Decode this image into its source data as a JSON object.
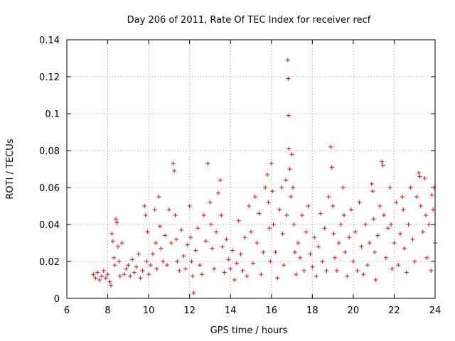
{
  "chart_data": {
    "type": "scatter",
    "title": "Day 206 of 2011, Rate Of TEC Index for receiver recf",
    "xlabel": "GPS time / hours",
    "ylabel": "ROTI / TECUs",
    "xlim": [
      6,
      24
    ],
    "ylim": [
      0,
      0.14
    ],
    "xticks": [
      6,
      8,
      10,
      12,
      14,
      16,
      18,
      20,
      22,
      24
    ],
    "xtick_labels": [
      "6",
      "8",
      "10",
      "12",
      "14",
      "16",
      "18",
      "20",
      "22",
      "24"
    ],
    "yticks": [
      0,
      0.02,
      0.04,
      0.06,
      0.08,
      0.1,
      0.12,
      0.14
    ],
    "ytick_labels": [
      "0",
      "0.02",
      "0.04",
      "0.06",
      "0.08",
      "0.1",
      "0.12",
      "0.14"
    ],
    "grid": true,
    "marker": "+",
    "color": "#ff0000",
    "series": [
      {
        "name": "recf",
        "points": [
          [
            7.3,
            0.013
          ],
          [
            7.4,
            0.011
          ],
          [
            7.5,
            0.014
          ],
          [
            7.6,
            0.01
          ],
          [
            7.7,
            0.012
          ],
          [
            7.8,
            0.015
          ],
          [
            7.9,
            0.011
          ],
          [
            8.0,
            0.013
          ],
          [
            8.1,
            0.009
          ],
          [
            8.15,
            0.007
          ],
          [
            8.2,
            0.035
          ],
          [
            8.25,
            0.031
          ],
          [
            8.3,
            0.022
          ],
          [
            8.35,
            0.018
          ],
          [
            8.4,
            0.043
          ],
          [
            8.45,
            0.041
          ],
          [
            8.5,
            0.028
          ],
          [
            8.55,
            0.02
          ],
          [
            8.6,
            0.012
          ],
          [
            8.7,
            0.03
          ],
          [
            8.8,
            0.013
          ],
          [
            8.9,
            0.016
          ],
          [
            9.0,
            0.018
          ],
          [
            9.1,
            0.012
          ],
          [
            9.2,
            0.021
          ],
          [
            9.3,
            0.014
          ],
          [
            9.4,
            0.017
          ],
          [
            9.5,
            0.024
          ],
          [
            9.6,
            0.011
          ],
          [
            9.7,
            0.015
          ],
          [
            9.8,
            0.05
          ],
          [
            9.85,
            0.045
          ],
          [
            9.9,
            0.02
          ],
          [
            9.95,
            0.036
          ],
          [
            10.0,
            0.013
          ],
          [
            10.1,
            0.018
          ],
          [
            10.2,
            0.024
          ],
          [
            10.3,
            0.048
          ],
          [
            10.35,
            0.03
          ],
          [
            10.4,
            0.016
          ],
          [
            10.5,
            0.055
          ],
          [
            10.55,
            0.039
          ],
          [
            10.6,
            0.027
          ],
          [
            10.7,
            0.02
          ],
          [
            10.8,
            0.034
          ],
          [
            10.9,
            0.018
          ],
          [
            11.0,
            0.048
          ],
          [
            11.1,
            0.03
          ],
          [
            11.2,
            0.073
          ],
          [
            11.25,
            0.069
          ],
          [
            11.3,
            0.045
          ],
          [
            11.35,
            0.032
          ],
          [
            11.4,
            0.02
          ],
          [
            11.5,
            0.015
          ],
          [
            11.6,
            0.037
          ],
          [
            11.7,
            0.023
          ],
          [
            11.8,
            0.016
          ],
          [
            11.9,
            0.029
          ],
          [
            12.0,
            0.05
          ],
          [
            12.05,
            0.033
          ],
          [
            12.1,
            0.02
          ],
          [
            12.15,
            0.012
          ],
          [
            12.2,
            0.003
          ],
          [
            12.3,
            0.026
          ],
          [
            12.4,
            0.038
          ],
          [
            12.5,
            0.018
          ],
          [
            12.6,
            0.013
          ],
          [
            12.7,
            0.045
          ],
          [
            12.8,
            0.031
          ],
          [
            12.9,
            0.073
          ],
          [
            13.0,
            0.052
          ],
          [
            13.05,
            0.04
          ],
          [
            13.1,
            0.027
          ],
          [
            13.2,
            0.016
          ],
          [
            13.3,
            0.036
          ],
          [
            13.4,
            0.057
          ],
          [
            13.5,
            0.064
          ],
          [
            13.55,
            0.045
          ],
          [
            13.6,
            0.028
          ],
          [
            13.7,
            0.014
          ],
          [
            13.8,
            0.032
          ],
          [
            13.9,
            0.021
          ],
          [
            14.0,
            0.016
          ],
          [
            14.1,
            0.026
          ],
          [
            14.2,
            0.01
          ],
          [
            14.3,
            0.019
          ],
          [
            14.4,
            0.042
          ],
          [
            14.5,
            0.024
          ],
          [
            14.6,
            0.015
          ],
          [
            14.7,
            0.033
          ],
          [
            14.8,
            0.012
          ],
          [
            14.9,
            0.05
          ],
          [
            15.0,
            0.036
          ],
          [
            15.1,
            0.019
          ],
          [
            15.2,
            0.055
          ],
          [
            15.3,
            0.03
          ],
          [
            15.4,
            0.046
          ],
          [
            15.5,
            0.013
          ],
          [
            15.6,
            0.025
          ],
          [
            15.7,
            0.06
          ],
          [
            15.8,
            0.067
          ],
          [
            15.85,
            0.052
          ],
          [
            15.9,
            0.038
          ],
          [
            15.95,
            0.02
          ],
          [
            16.0,
            0.073
          ],
          [
            16.05,
            0.058
          ],
          [
            16.1,
            0.04
          ],
          [
            16.2,
            0.025
          ],
          [
            16.3,
            0.011
          ],
          [
            16.4,
            0.048
          ],
          [
            16.5,
            0.06
          ],
          [
            16.55,
            0.035
          ],
          [
            16.6,
            0.018
          ],
          [
            16.7,
            0.064
          ],
          [
            16.75,
            0.045
          ],
          [
            16.8,
            0.129
          ],
          [
            16.82,
            0.119
          ],
          [
            16.84,
            0.099
          ],
          [
            16.85,
            0.081
          ],
          [
            16.9,
            0.07
          ],
          [
            16.95,
            0.055
          ],
          [
            17.0,
            0.078
          ],
          [
            17.05,
            0.06
          ],
          [
            17.1,
            0.04
          ],
          [
            17.15,
            0.025
          ],
          [
            17.2,
            0.013
          ],
          [
            17.3,
            0.03
          ],
          [
            17.4,
            0.022
          ],
          [
            17.5,
            0.045
          ],
          [
            17.6,
            0.015
          ],
          [
            17.7,
            0.036
          ],
          [
            17.8,
            0.05
          ],
          [
            17.9,
            0.024
          ],
          [
            18.0,
            0.017
          ],
          [
            18.1,
            0.033
          ],
          [
            18.2,
            0.012
          ],
          [
            18.3,
            0.028
          ],
          [
            18.4,
            0.046
          ],
          [
            18.5,
            0.02
          ],
          [
            18.6,
            0.038
          ],
          [
            18.7,
            0.015
          ],
          [
            18.8,
            0.055
          ],
          [
            18.9,
            0.082
          ],
          [
            18.95,
            0.071
          ],
          [
            19.0,
            0.05
          ],
          [
            19.05,
            0.035
          ],
          [
            19.1,
            0.022
          ],
          [
            19.2,
            0.015
          ],
          [
            19.3,
            0.03
          ],
          [
            19.4,
            0.04
          ],
          [
            19.5,
            0.06
          ],
          [
            19.55,
            0.045
          ],
          [
            19.6,
            0.025
          ],
          [
            19.7,
            0.012
          ],
          [
            19.8,
            0.033
          ],
          [
            19.9,
            0.048
          ],
          [
            20.0,
            0.02
          ],
          [
            20.1,
            0.036
          ],
          [
            20.2,
            0.015
          ],
          [
            20.3,
            0.052
          ],
          [
            20.4,
            0.028
          ],
          [
            20.5,
            0.013
          ],
          [
            20.6,
            0.04
          ],
          [
            20.7,
            0.018
          ],
          [
            20.8,
            0.03
          ],
          [
            20.9,
            0.062
          ],
          [
            20.95,
            0.058
          ],
          [
            21.0,
            0.043
          ],
          [
            21.05,
            0.025
          ],
          [
            21.1,
            0.01
          ],
          [
            21.2,
            0.034
          ],
          [
            21.3,
            0.05
          ],
          [
            21.4,
            0.074
          ],
          [
            21.45,
            0.072
          ],
          [
            21.5,
            0.045
          ],
          [
            21.6,
            0.022
          ],
          [
            21.7,
            0.038
          ],
          [
            21.8,
            0.06
          ],
          [
            21.85,
            0.04
          ],
          [
            21.9,
            0.016
          ],
          [
            22.0,
            0.03
          ],
          [
            22.1,
            0.052
          ],
          [
            22.2,
            0.018
          ],
          [
            22.3,
            0.035
          ],
          [
            22.4,
            0.055
          ],
          [
            22.45,
            0.048
          ],
          [
            22.5,
            0.027
          ],
          [
            22.6,
            0.014
          ],
          [
            22.7,
            0.04
          ],
          [
            22.8,
            0.06
          ],
          [
            22.9,
            0.032
          ],
          [
            23.0,
            0.02
          ],
          [
            23.1,
            0.055
          ],
          [
            23.2,
            0.068
          ],
          [
            23.25,
            0.066
          ],
          [
            23.3,
            0.05
          ],
          [
            23.4,
            0.036
          ],
          [
            23.5,
            0.065
          ],
          [
            23.55,
            0.045
          ],
          [
            23.6,
            0.022
          ],
          [
            23.7,
            0.04
          ],
          [
            23.8,
            0.015
          ],
          [
            23.85,
            0.056
          ],
          [
            23.9,
            0.048
          ],
          [
            23.95,
            0.06
          ],
          [
            24.0,
            0.03
          ]
        ]
      }
    ]
  }
}
